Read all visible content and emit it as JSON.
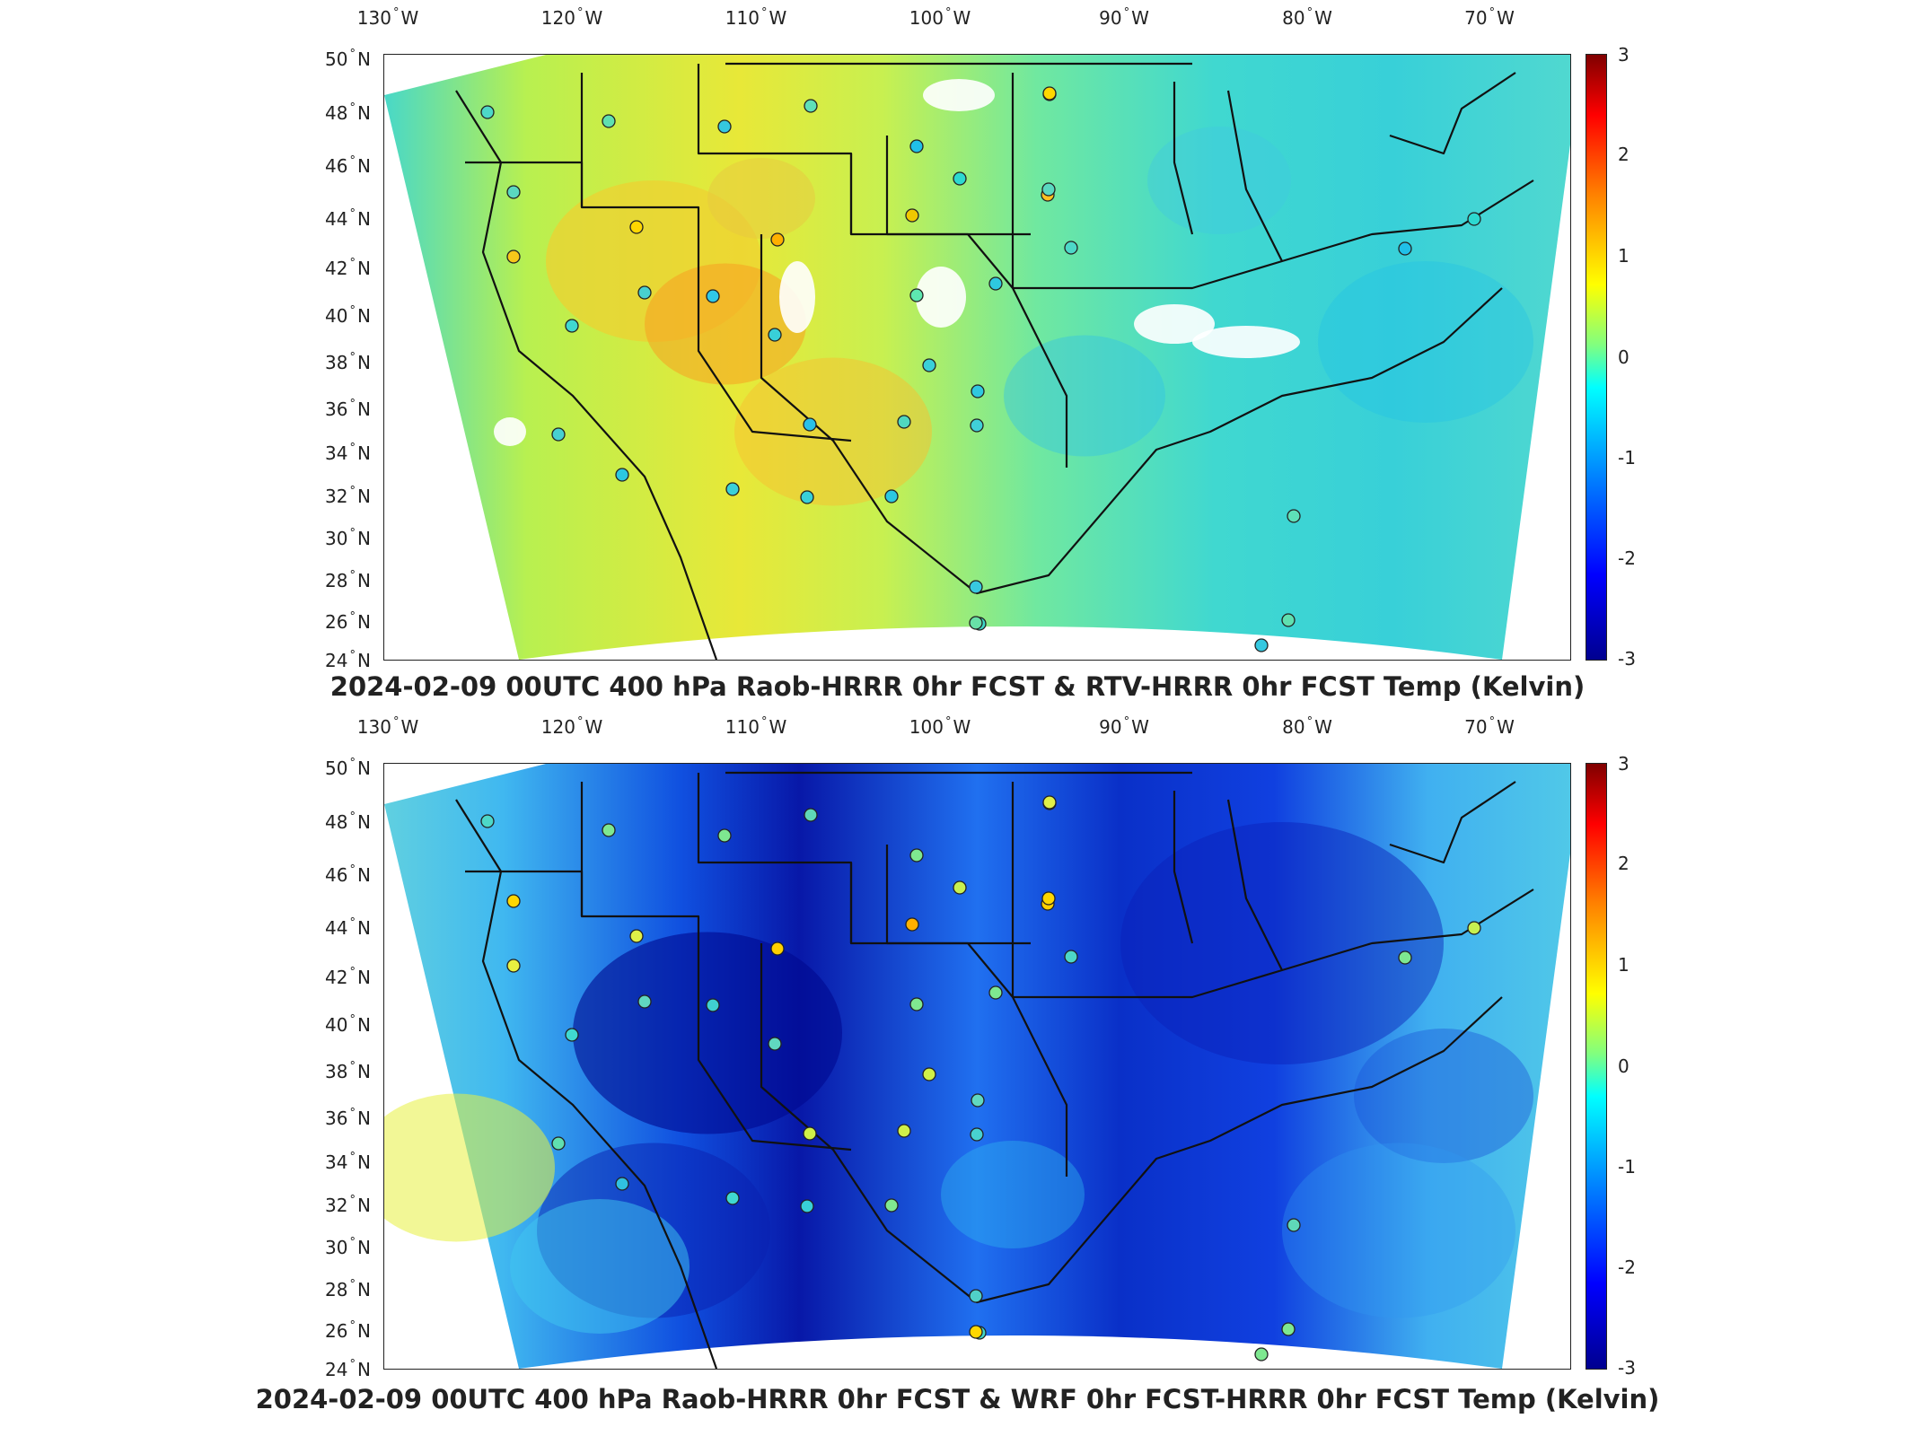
{
  "panels": [
    {
      "title": "2024-02-09 00UTC 400 hPa Raob-HRRR 0hr FCST & RTV-HRRR 0hr FCST Temp (Kelvin)",
      "field_style": "warm",
      "station_colors": [
        "#4dd8c8",
        "#5fe0b0",
        "#35c8e0",
        "#5ee0b8",
        "#20c0e8",
        "#2dd8d0",
        "#68e0a8",
        "#5ad8c0",
        "#ffd700",
        "#f7c81a",
        "#ffb000",
        "#ffc020",
        "#f0c800",
        "#48d0d0",
        "#30c8e8",
        "#5ee8b0",
        "#2ec8e0",
        "#40d8d0",
        "#38d0d8",
        "#3ad0d8",
        "#30c8e0",
        "#2ac0e8",
        "#50d8c0",
        "#40d0d8",
        "#48d0d0",
        "#2cc8e0",
        "#3ad0d8",
        "#38d0d8",
        "#2cc8e0",
        "#38c8e0",
        "#40d8c8"
      ]
    },
    {
      "title": "2024-02-09 00UTC 400 hPa Raob-HRRR 0hr FCST & WRF 0hr FCST-HRRR 0hr FCST Temp (Kelvin)",
      "field_style": "cold",
      "station_colors": [
        "#4dd8c8",
        "#7ee890",
        "#7ee890",
        "#5fd8b8",
        "#7ee890",
        "#c8f050",
        "#ffd700",
        "#ffd700",
        "#e0f048",
        "#e8f040",
        "#ffd000",
        "#ffd000",
        "#ffb000",
        "#60d8c0",
        "#40d0d0",
        "#80e890",
        "#7ee890",
        "#40d8d0",
        "#60d8c0",
        "#d0f048",
        "#60d8c0",
        "#d0f048",
        "#d0f048",
        "#48d0d0",
        "#60e0b0",
        "#30c0e0",
        "#40d8d0",
        "#38d0d8",
        "#80e890",
        "#50d0c8",
        "#40d8c8"
      ]
    }
  ],
  "axes": {
    "lon_labels": [
      "130",
      "120",
      "110",
      "100",
      "90",
      "80",
      "70"
    ],
    "lon_hemisphere": "W",
    "lat_labels": [
      "50",
      "48",
      "46",
      "44",
      "42",
      "40",
      "38",
      "36",
      "34",
      "32",
      "30",
      "28",
      "26",
      "24"
    ],
    "lat_hemisphere": "N",
    "degree_symbol": "°"
  },
  "colorbar": {
    "ticks": [
      "3",
      "2",
      "1",
      "0",
      "-1",
      "-2",
      "-3"
    ],
    "range": [
      -3,
      3
    ],
    "colormap": "jet"
  }
}
